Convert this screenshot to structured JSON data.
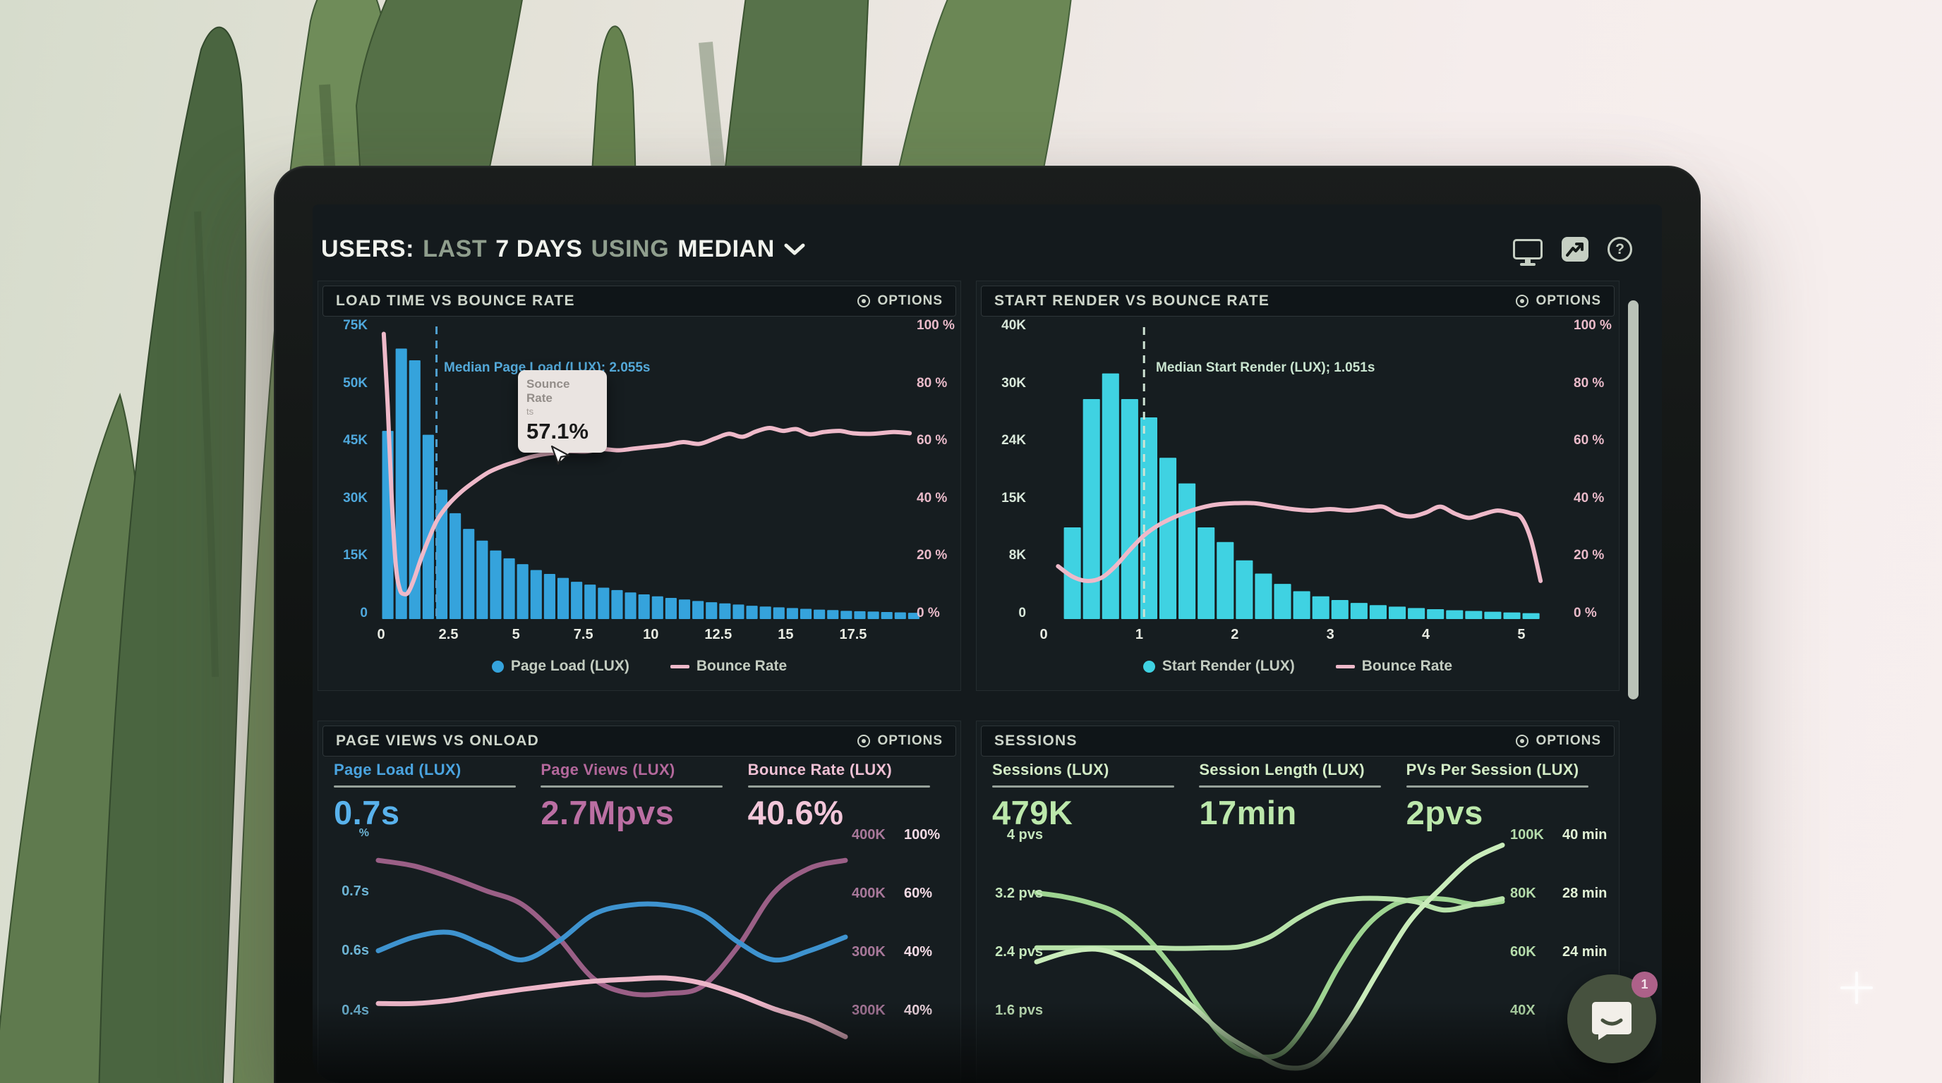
{
  "header": {
    "users": "USERS:",
    "last": "LAST",
    "days": "7 DAYS",
    "using": "USING",
    "median": "MEDIAN"
  },
  "icons": {
    "help_glyph": "?"
  },
  "panels": {
    "load_time": {
      "title": "LOAD TIME VS BOUNCE RATE",
      "options": "OPTIONS",
      "y_left": [
        "75K",
        "50K",
        "45K",
        "30K",
        "15K",
        "0"
      ],
      "y_right": [
        "100 %",
        "80 %",
        "60 %",
        "40 %",
        "20 %",
        "0 %"
      ],
      "x_ticks": [
        "0",
        "2.5",
        "5",
        "7.5",
        "10",
        "12.5",
        "15",
        "17.5"
      ],
      "median_label": "Median Page Load (LUX); 2.055s",
      "tooltip": {
        "title": "Sounce Rate",
        "sub": "ts",
        "value": "57.1%"
      }
    },
    "start_render": {
      "title": "START RENDER VS BOUNCE RATE",
      "options": "OPTIONS",
      "y_left": [
        "40K",
        "30K",
        "24K",
        "15K",
        "8K",
        "0"
      ],
      "y_right": [
        "100 %",
        "80 %",
        "60 %",
        "40 %",
        "20 %",
        "0 %"
      ],
      "x_ticks": [
        "0",
        "1",
        "2",
        "3",
        "4",
        "5"
      ],
      "median_label": "Median Start Render (LUX); 1.051s"
    },
    "page_views": {
      "title": "PAGE VIEWS VS ONLOAD",
      "options": "OPTIONS",
      "metrics": [
        {
          "label": "Page Load (LUX)",
          "value": "0.7s",
          "color": "#4aa4e0",
          "value_color": "#59b2ec"
        },
        {
          "label": "Page Views (LUX)",
          "value": "2.7Mpvs",
          "color": "#b4689c",
          "value_color": "#bb6fa3"
        },
        {
          "label": "Bounce Rate (LUX)",
          "value": "40.6%",
          "color": "#efc0d4",
          "value_color": "#f2c6d9"
        }
      ],
      "y_left": [
        "%",
        "0.7s",
        "0.6s",
        "0.4s"
      ],
      "y_right": [
        [
          "400K",
          "100%"
        ],
        [
          "400K",
          "60%"
        ],
        [
          "300K",
          "40%"
        ],
        [
          "300K",
          "40%"
        ]
      ]
    },
    "sessions": {
      "title": "SESSIONS",
      "options": "OPTIONS",
      "metrics": [
        {
          "label": "Sessions (LUX)",
          "value": "479K",
          "color": "#d3ecc6",
          "value_color": "#bce8ab"
        },
        {
          "label": "Session Length (LUX)",
          "value": "17min",
          "color": "#d3ecc6",
          "value_color": "#bce8ab"
        },
        {
          "label": "PVs Per Session (LUX)",
          "value": "2pvs",
          "color": "#d3ecc6",
          "value_color": "#bce8ab"
        }
      ],
      "y_left": [
        "4 pvs",
        "3.2 pvs",
        "2.4 pvs",
        "1.6 pvs"
      ],
      "y_right": [
        [
          "100K",
          "40 min"
        ],
        [
          "80K",
          "28 min"
        ],
        [
          "60K",
          "24 min"
        ],
        [
          "40X",
          ""
        ]
      ]
    }
  },
  "chat_button": {
    "badge": "1"
  },
  "colors": {
    "screen_bg": "#141a1d",
    "panel_bg": "#161d20",
    "panel_head_bg": "#0f1518",
    "bar_blue": "#35a3dc",
    "bar_cyan": "#3fd2e2",
    "line_pink": "#eeb9c9",
    "line_mauve": "#9a5f86",
    "line_blue": "#3e93cf",
    "line_green": "#9ed491",
    "text_light": "#cdd5ca"
  },
  "chart_data": [
    {
      "type": "bar+line",
      "title": "Load Time vs Bounce Rate",
      "x_unit": "seconds",
      "xlim": [
        0,
        19.7
      ],
      "ylim_left_k": [
        0,
        75
      ],
      "ylim_right_pct": [
        0,
        100
      ],
      "bars": {
        "name": "Page Load (LUX)",
        "color": "#35a3dc",
        "unit": "K users",
        "x_start": 0,
        "bin_width": 0.5,
        "values_k": [
          48,
          69,
          66,
          47,
          33,
          27,
          23,
          20,
          17.5,
          15.5,
          14,
          12.5,
          11.5,
          10.5,
          9.5,
          8.8,
          8,
          7.4,
          6.8,
          6.3,
          5.8,
          5.4,
          5,
          4.6,
          4.3,
          4,
          3.7,
          3.4,
          3.2,
          3,
          2.8,
          2.6,
          2.4,
          2.3,
          2.1,
          2,
          1.9,
          1.8,
          1.7,
          1.6
        ]
      },
      "line": {
        "name": "Bounce Rate",
        "color": "#eeb9c9",
        "unit": "%",
        "points": [
          [
            0.1,
            97
          ],
          [
            0.25,
            72
          ],
          [
            0.4,
            40
          ],
          [
            0.55,
            18
          ],
          [
            0.7,
            10
          ],
          [
            0.85,
            8.5
          ],
          [
            1,
            9
          ],
          [
            1.2,
            13
          ],
          [
            1.5,
            21
          ],
          [
            1.8,
            28
          ],
          [
            2.1,
            34
          ],
          [
            2.5,
            39
          ],
          [
            3,
            43.5
          ],
          [
            3.5,
            47
          ],
          [
            4,
            50
          ],
          [
            4.5,
            52
          ],
          [
            5,
            53.5
          ],
          [
            5.5,
            55
          ],
          [
            6,
            56
          ],
          [
            6.5,
            56.6
          ],
          [
            7,
            57.1
          ],
          [
            7.6,
            57
          ],
          [
            8.2,
            57.8
          ],
          [
            8.8,
            57.4
          ],
          [
            9.4,
            58
          ],
          [
            10,
            58.6
          ],
          [
            10.6,
            59.2
          ],
          [
            11.2,
            60.2
          ],
          [
            11.8,
            59.6
          ],
          [
            12.4,
            61.5
          ],
          [
            12.9,
            63
          ],
          [
            13.4,
            62
          ],
          [
            13.9,
            63.8
          ],
          [
            14.4,
            65
          ],
          [
            14.9,
            64
          ],
          [
            15.4,
            64.6
          ],
          [
            15.9,
            62.8
          ],
          [
            16.4,
            63.6
          ],
          [
            17,
            64
          ],
          [
            17.5,
            63.2
          ],
          [
            18.2,
            63
          ],
          [
            19,
            63.6
          ],
          [
            19.6,
            63.2
          ]
        ]
      },
      "median": {
        "x": 2.055,
        "label": "Median Page Load (LUX); 2.055s",
        "color": "#4f9fce"
      },
      "hover_value_pct": 57.1
    },
    {
      "type": "bar+line",
      "title": "Start Render vs Bounce Rate",
      "x_unit": "seconds",
      "xlim": [
        0,
        5.45
      ],
      "ylim_left_k": [
        0,
        40
      ],
      "ylim_right_pct": [
        0,
        100
      ],
      "bars": {
        "name": "Start Render (LUX)",
        "color": "#3fd2e2",
        "unit": "K users",
        "x_start": 0.2,
        "bin_width": 0.2,
        "values_k": [
          12.5,
          30,
          33.5,
          30,
          27.5,
          22,
          18.5,
          12.5,
          10.5,
          8,
          6.2,
          4.8,
          3.8,
          3.1,
          2.6,
          2.2,
          1.9,
          1.7,
          1.5,
          1.35,
          1.2,
          1.1,
          1,
          0.9,
          0.8
        ]
      },
      "line": {
        "name": "Bounce Rate",
        "color": "#eeb9c9",
        "unit": "%",
        "points": [
          [
            0.15,
            18
          ],
          [
            0.3,
            14.5
          ],
          [
            0.45,
            13
          ],
          [
            0.6,
            14
          ],
          [
            0.75,
            18
          ],
          [
            0.9,
            23.5
          ],
          [
            1.05,
            28.5
          ],
          [
            1.2,
            32
          ],
          [
            1.35,
            34.5
          ],
          [
            1.5,
            36.5
          ],
          [
            1.65,
            38
          ],
          [
            1.8,
            39
          ],
          [
            2,
            39.5
          ],
          [
            2.2,
            39.5
          ],
          [
            2.4,
            38.5
          ],
          [
            2.6,
            37.5
          ],
          [
            2.8,
            37
          ],
          [
            3,
            37.5
          ],
          [
            3.2,
            37
          ],
          [
            3.4,
            37.8
          ],
          [
            3.55,
            38.3
          ],
          [
            3.7,
            35.8
          ],
          [
            3.85,
            35
          ],
          [
            4,
            36.3
          ],
          [
            4.15,
            38.3
          ],
          [
            4.3,
            36
          ],
          [
            4.45,
            34.5
          ],
          [
            4.6,
            35.8
          ],
          [
            4.75,
            37
          ],
          [
            4.9,
            36
          ],
          [
            5,
            34.5
          ],
          [
            5.1,
            27
          ],
          [
            5.2,
            13
          ]
        ]
      },
      "median": {
        "x": 1.05,
        "label": "Median Start Render (LUX); 1.051s",
        "color": "#cfe4d4"
      }
    },
    {
      "type": "line",
      "title": "Page Views vs Onload",
      "series": [
        {
          "name": "Page Views (LUX)",
          "color": "#9a5f86",
          "unit": "K pageviews",
          "ylim": [
            280,
            450
          ],
          "values": [
            433,
            428,
            418,
            406,
            394,
            365,
            328,
            315,
            315,
            321,
            356,
            404,
            426,
            433
          ]
        },
        {
          "name": "Page Load (LUX)",
          "color": "#3e93cf",
          "unit": "s",
          "ylim": [
            0.42,
            0.84
          ],
          "values": [
            0.6,
            0.63,
            0.64,
            0.61,
            0.58,
            0.62,
            0.68,
            0.7,
            0.7,
            0.68,
            0.62,
            0.58,
            0.6,
            0.63
          ]
        },
        {
          "name": "Bounce Rate",
          "color": "#ecb6c8",
          "unit": "%",
          "ylim": [
            30,
            60
          ],
          "values": [
            34.6,
            34.6,
            35.1,
            36,
            36.8,
            37.5,
            38.1,
            38.4,
            38.6,
            37.8,
            36,
            33.8,
            32,
            29.4
          ]
        }
      ]
    },
    {
      "type": "line",
      "title": "Sessions",
      "series": [
        {
          "name": "Sessions (LUX)",
          "color": "#9ed491",
          "unit": "K sessions",
          "ylim": [
            20,
            110
          ],
          "values": [
            85.7,
            83.9,
            80.8,
            75.8,
            65,
            49.7,
            30.8,
            15.5,
            9.2,
            11,
            27.2,
            50.6,
            69.5,
            79.9,
            83,
            82.6,
            80.3,
            81.7
          ]
        },
        {
          "name": "Session Length (LUX)",
          "color": "#b7e2a9",
          "unit": "min",
          "ylim": [
            8,
            40
          ],
          "values": [
            22.2,
            22.2,
            22.2,
            22.2,
            22.2,
            22.1,
            22.2,
            22.4,
            24,
            27.2,
            29.6,
            30.4,
            30.4,
            29.9,
            28.5,
            29.4,
            30.4
          ]
        },
        {
          "name": "PVs Per Session (LUX)",
          "color": "#c9ecba",
          "unit": "pvs",
          "ylim": [
            1.2,
            4.6
          ],
          "values": [
            2.46,
            2.63,
            2.68,
            2.49,
            2.12,
            1.68,
            1.2,
            0.86,
            0.59,
            0.69,
            1.37,
            2.29,
            3.17,
            3.75,
            4.26,
            4.53
          ]
        }
      ]
    }
  ]
}
